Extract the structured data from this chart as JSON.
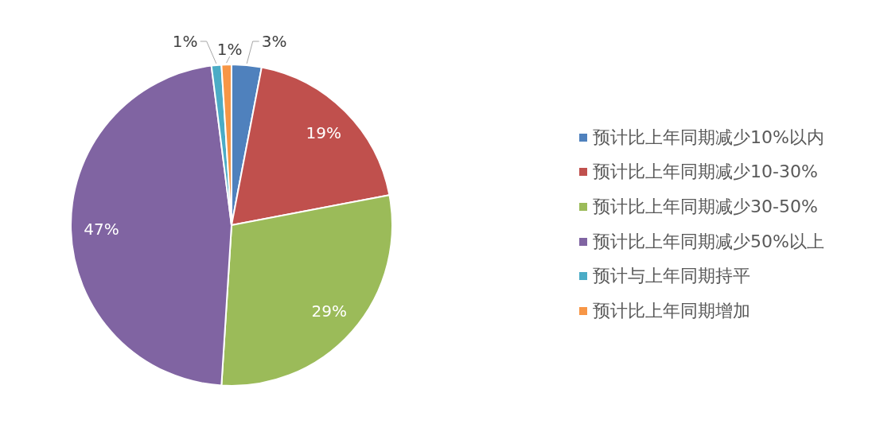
{
  "chart_data": {
    "type": "pie",
    "categories": [
      "预计比上年同期减少10%以内",
      "预计比上年同期减少10-30%",
      "预计比上年同期减少30-50%",
      "预计比上年同期减少50%以上",
      "预计与上年同期持平",
      "预计比上年同期增加"
    ],
    "values": [
      3,
      19,
      29,
      47,
      1,
      1
    ],
    "colors": [
      "#4f81bd",
      "#c0504d",
      "#9bbb59",
      "#8064a2",
      "#4bacc6",
      "#f79646"
    ],
    "value_labels": [
      "3%",
      "19%",
      "29%",
      "47%",
      "1%",
      "1%"
    ],
    "legend": "right"
  }
}
